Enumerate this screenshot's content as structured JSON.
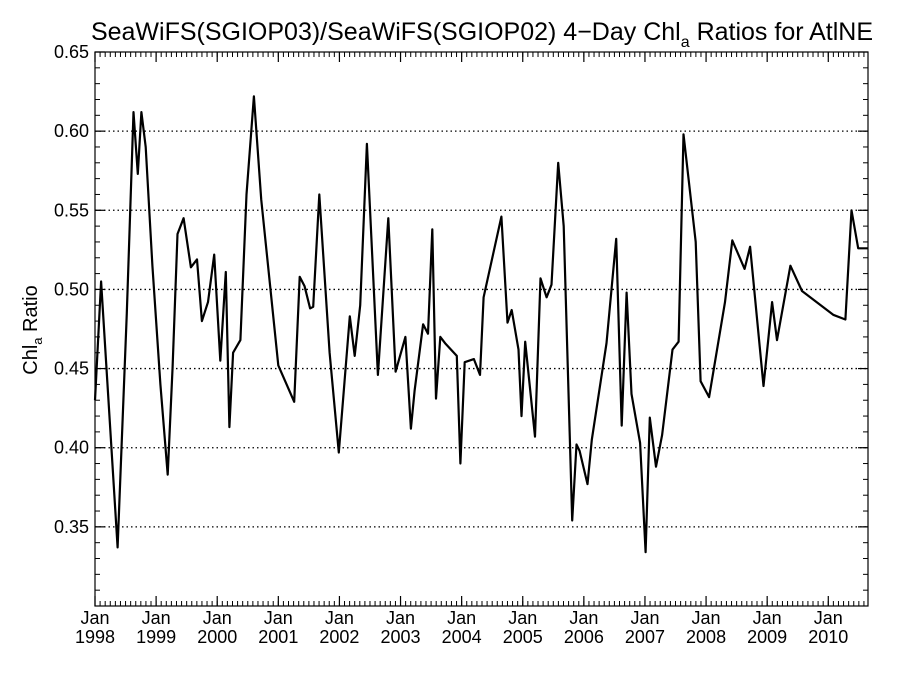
{
  "chart_data": {
    "type": "line",
    "title": {
      "main": "SeaWiFS(SGIOP03)/SeaWiFS(SGIOP02) 4−Day Chl",
      "sub": "a",
      "tail": " Ratios for AtlNE"
    },
    "ylabel": {
      "main": "Chl",
      "sub": "a",
      "tail": " Ratio"
    },
    "xlim": [
      1998.0,
      2010.65
    ],
    "ylim": [
      0.3,
      0.65
    ],
    "y_ticks": [
      0.35,
      0.4,
      0.45,
      0.5,
      0.55,
      0.6,
      0.65
    ],
    "y_tick_labels": [
      "0.35",
      "0.40",
      "0.45",
      "0.50",
      "0.55",
      "0.60",
      "0.65"
    ],
    "y_gridlines": [
      0.35,
      0.4,
      0.45,
      0.5,
      0.55,
      0.6
    ],
    "grid": "horizontal dotted",
    "x_ticks": [
      {
        "x": 1998,
        "month": "Jan",
        "year": "1998"
      },
      {
        "x": 1999,
        "month": "Jan",
        "year": "1999"
      },
      {
        "x": 2000,
        "month": "Jan",
        "year": "2000"
      },
      {
        "x": 2001,
        "month": "Jan",
        "year": "2001"
      },
      {
        "x": 2002,
        "month": "Jan",
        "year": "2002"
      },
      {
        "x": 2003,
        "month": "Jan",
        "year": "2003"
      },
      {
        "x": 2004,
        "month": "Jan",
        "year": "2004"
      },
      {
        "x": 2005,
        "month": "Jan",
        "year": "2005"
      },
      {
        "x": 2006,
        "month": "Jan",
        "year": "2006"
      },
      {
        "x": 2007,
        "month": "Jan",
        "year": "2007"
      },
      {
        "x": 2008,
        "month": "Jan",
        "year": "2008"
      },
      {
        "x": 2009,
        "month": "Jan",
        "year": "2009"
      },
      {
        "x": 2010,
        "month": "Jan",
        "year": "2010"
      }
    ],
    "series": [
      {
        "color": "#000000",
        "x": [
          1998.0,
          1998.1,
          1998.37,
          1998.52,
          1998.63,
          1998.7,
          1998.76,
          1998.83,
          1998.94,
          1999.07,
          1999.19,
          1999.27,
          1999.35,
          1999.45,
          1999.57,
          1999.67,
          1999.75,
          1999.85,
          1999.95,
          2000.05,
          2000.14,
          2000.2,
          2000.26,
          2000.38,
          2000.48,
          2000.6,
          2000.72,
          2001.0,
          2001.26,
          2001.35,
          2001.43,
          2001.52,
          2001.57,
          2001.67,
          2001.84,
          2001.99,
          2002.17,
          2002.25,
          2002.34,
          2002.45,
          2002.63,
          2002.8,
          2002.92,
          2003.08,
          2003.17,
          2003.23,
          2003.37,
          2003.45,
          2003.52,
          2003.58,
          2003.65,
          2003.73,
          2003.92,
          2003.98,
          2004.05,
          2004.2,
          2004.3,
          2004.36,
          2004.65,
          2004.75,
          2004.82,
          2004.93,
          2004.98,
          2005.04,
          2005.2,
          2005.29,
          2005.39,
          2005.47,
          2005.58,
          2005.67,
          2005.81,
          2005.88,
          2005.93,
          2006.06,
          2006.13,
          2006.37,
          2006.53,
          2006.62,
          2006.7,
          2006.78,
          2006.92,
          2007.01,
          2007.08,
          2007.18,
          2007.28,
          2007.45,
          2007.55,
          2007.63,
          2007.83,
          2007.91,
          2008.05,
          2008.31,
          2008.43,
          2008.63,
          2008.72,
          2008.94,
          2009.08,
          2009.16,
          2009.38,
          2009.57,
          2010.08,
          2010.28,
          2010.38,
          2010.49,
          2010.65
        ],
        "y": [
          0.43,
          0.505,
          0.337,
          0.485,
          0.612,
          0.573,
          0.612,
          0.59,
          0.515,
          0.44,
          0.383,
          0.451,
          0.535,
          0.545,
          0.514,
          0.519,
          0.48,
          0.492,
          0.522,
          0.455,
          0.511,
          0.413,
          0.46,
          0.468,
          0.56,
          0.622,
          0.557,
          0.452,
          0.429,
          0.508,
          0.502,
          0.488,
          0.489,
          0.56,
          0.46,
          0.397,
          0.483,
          0.458,
          0.49,
          0.592,
          0.446,
          0.545,
          0.448,
          0.47,
          0.412,
          0.436,
          0.478,
          0.472,
          0.538,
          0.431,
          0.47,
          0.466,
          0.458,
          0.39,
          0.454,
          0.456,
          0.446,
          0.495,
          0.546,
          0.479,
          0.487,
          0.462,
          0.42,
          0.467,
          0.407,
          0.507,
          0.495,
          0.503,
          0.58,
          0.54,
          0.354,
          0.402,
          0.398,
          0.377,
          0.405,
          0.466,
          0.532,
          0.414,
          0.498,
          0.434,
          0.403,
          0.334,
          0.419,
          0.388,
          0.408,
          0.462,
          0.467,
          0.598,
          0.53,
          0.442,
          0.432,
          0.492,
          0.531,
          0.513,
          0.527,
          0.439,
          0.492,
          0.468,
          0.515,
          0.499,
          0.484,
          0.481,
          0.55,
          0.526,
          0.526
        ]
      }
    ]
  }
}
